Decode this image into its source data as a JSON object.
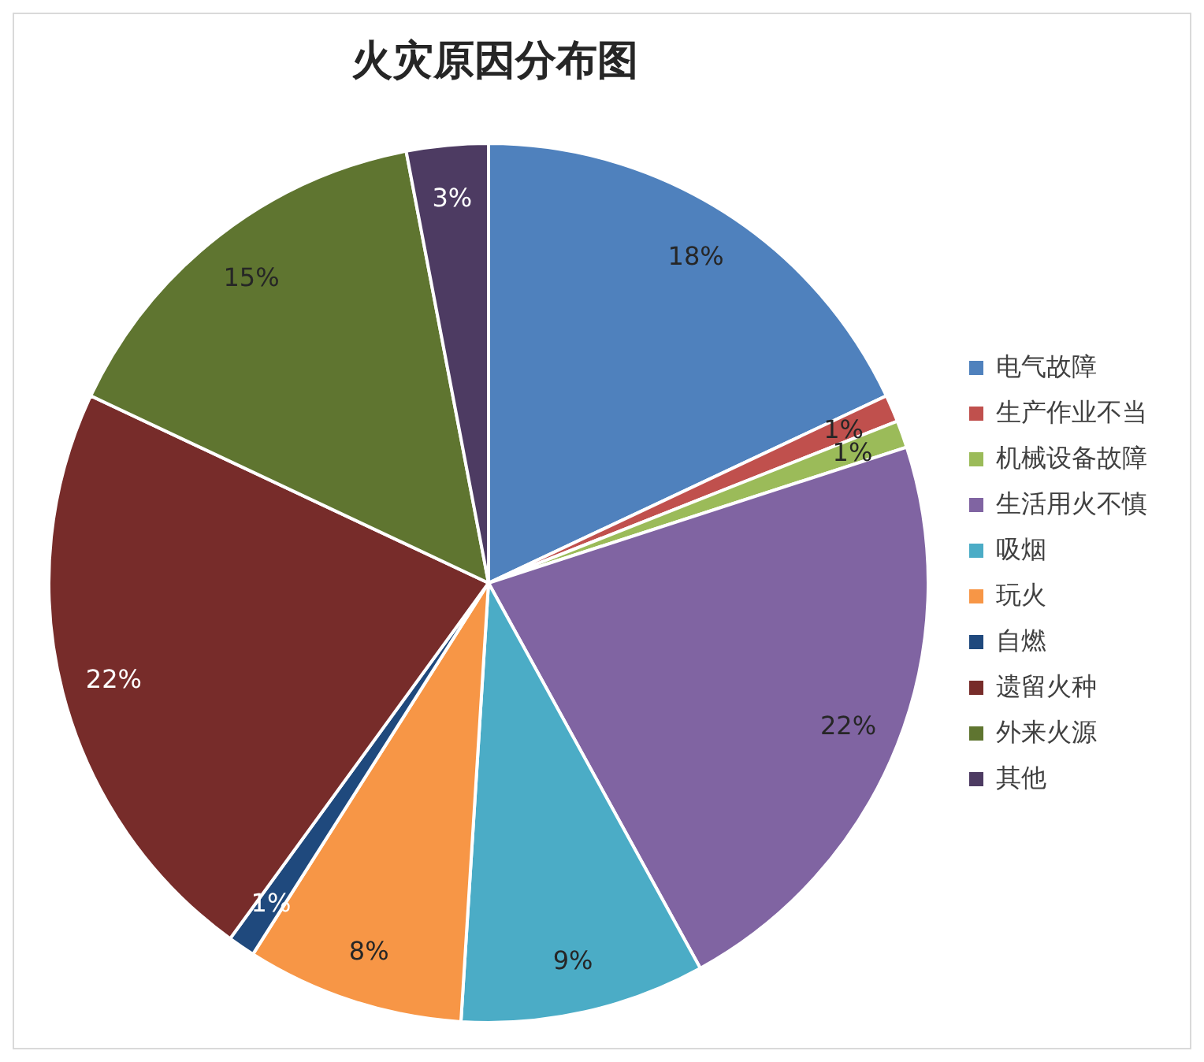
{
  "chart_data": {
    "type": "pie",
    "title": "火灾原因分布图",
    "categories": [
      "电气故障",
      "生产作业不当",
      "机械设备故障",
      "生活用火不慎",
      "吸烟",
      "玩火",
      "自燃",
      "遗留火种",
      "外来火源",
      "其他"
    ],
    "values": [
      18,
      1,
      1,
      22,
      9,
      8,
      1,
      22,
      15,
      3
    ],
    "colors": [
      "#4f81bd",
      "#c0504d",
      "#9bbb59",
      "#8064a2",
      "#4bacc6",
      "#f79646",
      "#1f497d",
      "#772c2a",
      "#5f7530",
      "#4d3b62"
    ],
    "value_labels": [
      "18%",
      "1%",
      "1%",
      "22%",
      "9%",
      "8%",
      "1%",
      "22%",
      "15%",
      "3%"
    ],
    "legend": "right"
  }
}
